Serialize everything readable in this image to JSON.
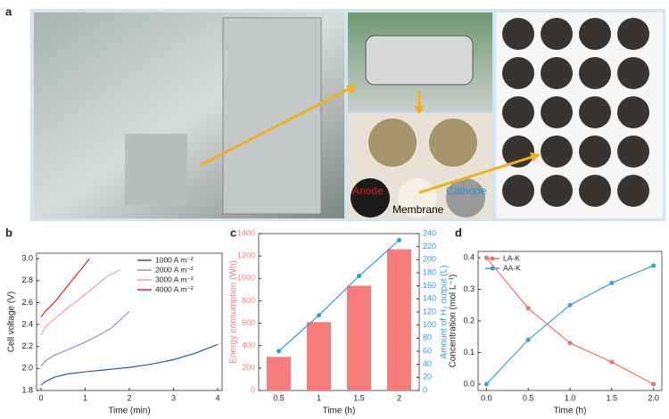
{
  "figure": {
    "panel_labels": [
      "a",
      "b",
      "c",
      "d"
    ],
    "photo_labels": [
      "Anode",
      "Membrane",
      "Cathode"
    ]
  },
  "chart_data": [
    {
      "type": "line",
      "xlabel": "Time (min)",
      "ylabel": "Cell voltage (V)",
      "xlim": [
        -0.1,
        4.1
      ],
      "xticks": [
        0,
        1,
        2,
        3,
        4
      ],
      "ylim": [
        1.8,
        3.05
      ],
      "yticks": [
        1.8,
        {
          "value": 2,
          "label": "2.0"
        },
        2.2,
        2.4,
        2.6,
        2.8,
        {
          "value": 3,
          "label": "3.0"
        }
      ],
      "legend": "upper right",
      "markers": false,
      "series": [
        {
          "name": "1000 A m⁻²",
          "color": "#3a55a0",
          "x": [
            0,
            0.1,
            0.3,
            0.6,
            1,
            1.5,
            2,
            2.5,
            3,
            3.5,
            4
          ],
          "values": [
            1.85,
            1.88,
            1.92,
            1.95,
            1.97,
            1.99,
            2.01,
            2.04,
            2.08,
            2.14,
            2.22
          ]
        },
        {
          "name": "2000 A m⁻²",
          "color": "#9a90bc",
          "x": [
            0,
            0.1,
            0.3,
            0.6,
            1,
            1.3,
            1.6,
            2
          ],
          "values": [
            2.02,
            2.07,
            2.12,
            2.17,
            2.24,
            2.3,
            2.37,
            2.52
          ]
        },
        {
          "name": "3000 A m⁻²",
          "color": "#f4a0a0",
          "x": [
            0,
            0.1,
            0.3,
            0.6,
            0.9,
            1.2,
            1.5,
            1.8
          ],
          "values": [
            2.3,
            2.38,
            2.45,
            2.55,
            2.64,
            2.74,
            2.84,
            2.9
          ]
        },
        {
          "name": "4000 A m⁻²",
          "color": "#e02424",
          "x": [
            0,
            0.1,
            0.3,
            0.5,
            0.7,
            0.9,
            1.1
          ],
          "values": [
            2.47,
            2.52,
            2.6,
            2.7,
            2.8,
            2.9,
            3.0
          ]
        }
      ]
    },
    {
      "type": "bar",
      "xlabel": "Time (h)",
      "ylabel": "Energy consumption (Wh)",
      "y2label": "Amount of H₂ output (L)",
      "categories": [
        "0.5",
        "1",
        "1.5",
        "2"
      ],
      "ylim": [
        0,
        1400
      ],
      "yticks": [
        0,
        200,
        400,
        600,
        800,
        1000,
        1200,
        1400
      ],
      "y2lim": [
        0,
        240
      ],
      "y2ticks": [
        0,
        20,
        40,
        60,
        80,
        100,
        120,
        140,
        160,
        180,
        200,
        220,
        240
      ],
      "markers": true,
      "series": [
        {
          "color": "#f67c7c",
          "values": [
            300,
            610,
            935,
            1260
          ]
        },
        {
          "color": "#2a9fd6",
          "values": [
            60,
            115,
            175,
            230
          ],
          "axis": "y2",
          "type": "line"
        }
      ]
    },
    {
      "type": "line",
      "xlabel": "Time (h)",
      "ylabel": "Concentration (mol L⁻¹)",
      "xlim": [
        -0.1,
        2.1
      ],
      "xticks": [
        {
          "value": 0,
          "label": "0.0"
        },
        0.5,
        {
          "value": 1,
          "label": "1.0"
        },
        1.5,
        {
          "value": 2,
          "label": "2.0"
        }
      ],
      "ylim": [
        -0.02,
        0.42
      ],
      "yticks": [
        {
          "value": 0,
          "label": "0.0"
        },
        0.1,
        0.2,
        0.3,
        0.4
      ],
      "legend": "upper left",
      "markers": true,
      "series": [
        {
          "name": "LA-K",
          "color": "#f07070",
          "x": [
            0,
            0.5,
            1,
            1.5,
            2
          ],
          "values": [
            0.4,
            0.24,
            0.13,
            0.07,
            0
          ]
        },
        {
          "name": "AA-K",
          "color": "#3aa0d0",
          "x": [
            0,
            0.5,
            1,
            1.5,
            2
          ],
          "values": [
            0,
            0.14,
            0.25,
            0.32,
            0.375
          ]
        }
      ]
    }
  ]
}
